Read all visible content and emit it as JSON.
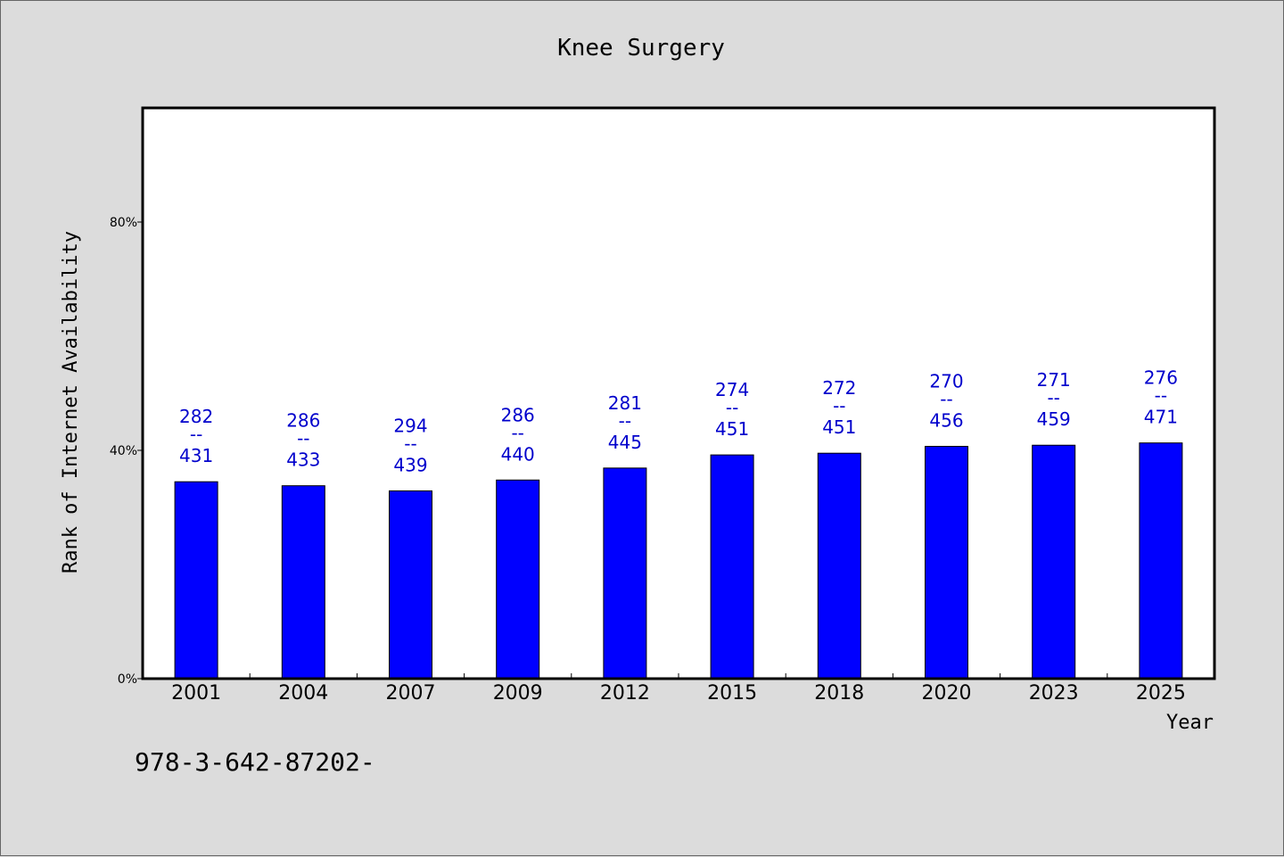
{
  "chart_data": {
    "type": "bar",
    "title": "Knee Surgery",
    "xlabel": "Year",
    "ylabel": "Rank of Internet Availability",
    "ylim": [
      0,
      100
    ],
    "yticks": [
      0,
      40,
      80
    ],
    "ytick_labels": [
      "0%",
      "40%",
      "80%"
    ],
    "categories": [
      "2001",
      "2004",
      "2007",
      "2009",
      "2012",
      "2015",
      "2018",
      "2020",
      "2023",
      "2025"
    ],
    "values": [
      34.5,
      33.8,
      32.9,
      34.8,
      36.9,
      39.2,
      39.5,
      40.7,
      40.9,
      41.3
    ],
    "bar_label_top": [
      "282",
      "286",
      "294",
      "286",
      "281",
      "274",
      "272",
      "270",
      "271",
      "276"
    ],
    "bar_label_separator": "--",
    "bar_label_bottom": [
      "431",
      "433",
      "439",
      "440",
      "445",
      "451",
      "451",
      "456",
      "459",
      "471"
    ],
    "bar_color": "#0000ff",
    "label_color": "#0000cc",
    "grid": false,
    "legend": "none"
  },
  "footer": {
    "text": "978-3-642-87202-"
  }
}
